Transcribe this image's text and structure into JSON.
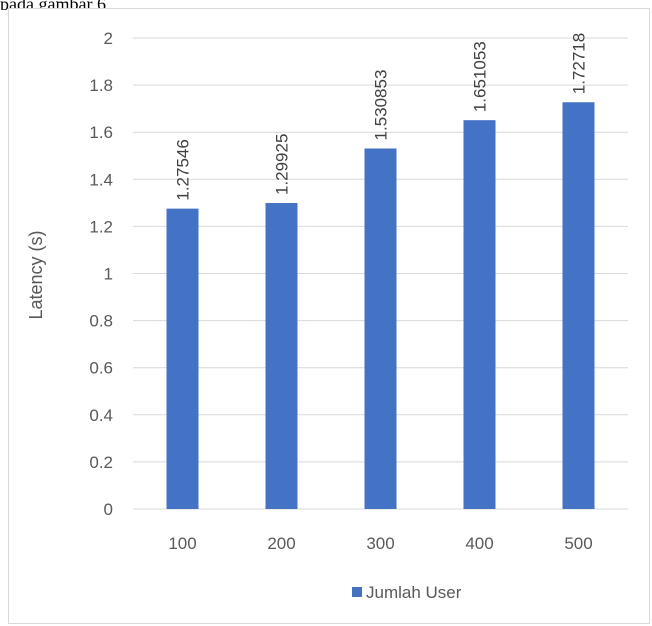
{
  "caption_fragment": "pada gambar 6.",
  "chart_data": {
    "type": "bar",
    "title": "",
    "xlabel": "",
    "ylabel": "Latency (s)",
    "categories": [
      "100",
      "200",
      "300",
      "400",
      "500"
    ],
    "series": [
      {
        "name": "Jumlah User",
        "values": [
          1.27546,
          1.29925,
          1.530853,
          1.651053,
          1.72718
        ],
        "labels": [
          "1.27546",
          "1.29925",
          "1.530853",
          "1.651053",
          "1.72718"
        ],
        "color": "#4472c4"
      }
    ],
    "ylim": [
      0,
      2
    ],
    "yticks": [
      "0",
      "0.2",
      "0.4",
      "0.6",
      "0.8",
      "1",
      "1.2",
      "1.4",
      "1.6",
      "1.8",
      "2"
    ],
    "grid": true,
    "legend": "bottom",
    "gridline_color": "#d9d9d9"
  }
}
